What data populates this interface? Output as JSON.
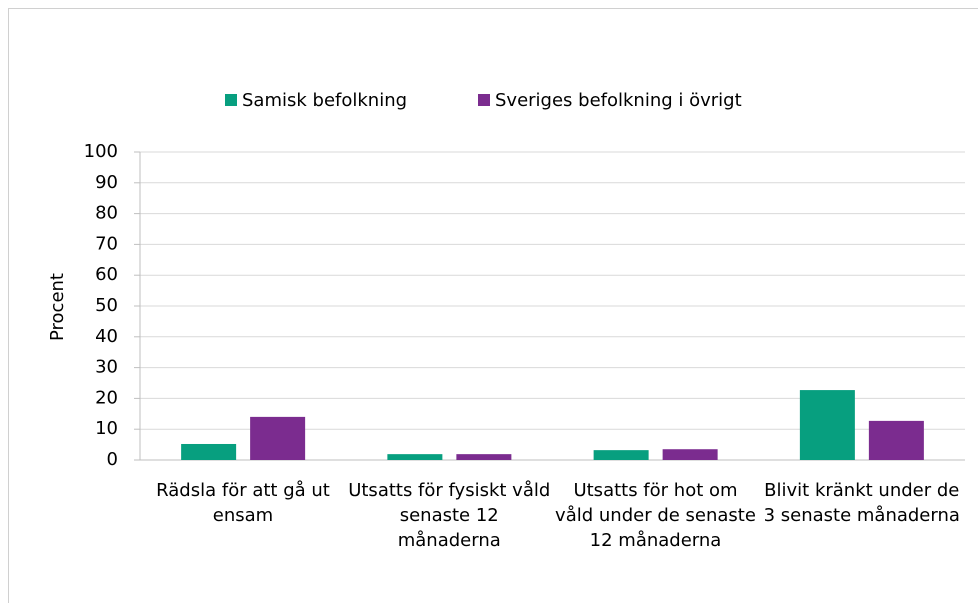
{
  "chart_data": {
    "type": "bar",
    "categories": [
      "Rädsla för att gå ut ensam",
      "Utsatts för fysiskt våld senaste 12 månaderna",
      "Utsatts för hot om våld under de senaste 12 månaderna",
      "Blivit kränkt under de 3 senaste månaderna"
    ],
    "series": [
      {
        "name": "Samisk befolkning",
        "color": "#079f7f",
        "values": [
          5.2,
          1.9,
          3.2,
          22.7
        ]
      },
      {
        "name": "Sveriges befolkning i övrigt",
        "color": "#7b2c8f",
        "values": [
          14.0,
          1.9,
          3.5,
          12.7
        ]
      }
    ],
    "y_label": "Procent",
    "ylim": [
      0,
      100
    ],
    "yticks": [
      0,
      10,
      20,
      30,
      40,
      50,
      60,
      70,
      80,
      90,
      100
    ],
    "grid": true,
    "legend": "top"
  }
}
